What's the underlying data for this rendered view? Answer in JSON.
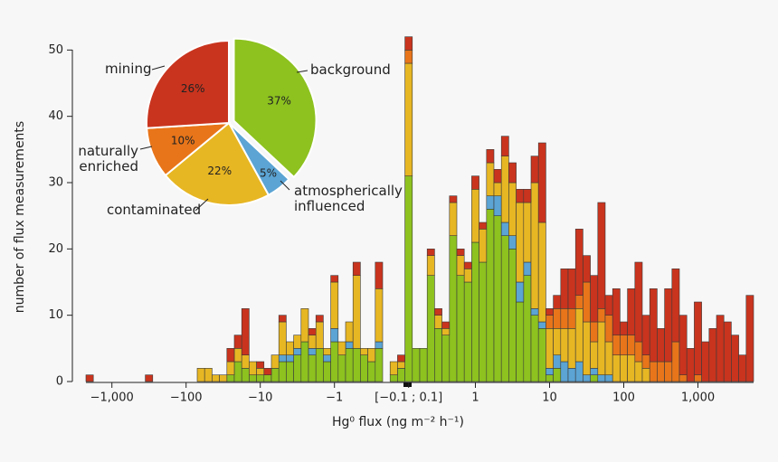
{
  "chart_data": [
    {
      "type": "bar",
      "stacked": true,
      "x_label": "Hg⁰ flux (ng m⁻² h⁻¹)",
      "y_label": "number of flux measurements",
      "categories": [
        null,
        null,
        null,
        "−1,000",
        null,
        null,
        null,
        null,
        null,
        null,
        null,
        null,
        null,
        "−100",
        null,
        null,
        null,
        null,
        null,
        null,
        null,
        null,
        null,
        "−10",
        null,
        null,
        null,
        null,
        null,
        null,
        null,
        null,
        null,
        "−1",
        null,
        null,
        null,
        null,
        null,
        null,
        null,
        null,
        null,
        "[−0.1 ; 0.1]",
        null,
        null,
        null,
        null,
        null,
        null,
        null,
        null,
        "1",
        null,
        null,
        null,
        null,
        null,
        null,
        null,
        null,
        null,
        "10",
        null,
        null,
        null,
        null,
        null,
        null,
        null,
        null,
        null,
        "100",
        null,
        null,
        null,
        null,
        null,
        null,
        null,
        null,
        null,
        "1,000",
        null,
        null,
        null,
        null,
        null,
        null,
        null
      ],
      "series": [
        {
          "name": "background",
          "color": "#8dc21f",
          "values": [
            0,
            0,
            0,
            0,
            0,
            0,
            0,
            0,
            0,
            0,
            0,
            0,
            0,
            0,
            0,
            0,
            0,
            0,
            0,
            1,
            3,
            2,
            1,
            1,
            1,
            2,
            3,
            3,
            4,
            6,
            4,
            5,
            3,
            6,
            4,
            5,
            5,
            4,
            3,
            5,
            0,
            1,
            2,
            31,
            5,
            5,
            16,
            8,
            7,
            22,
            16,
            15,
            21,
            18,
            26,
            25,
            22,
            20,
            12,
            16,
            10,
            8,
            1,
            2,
            0,
            0,
            0,
            0,
            1,
            0,
            0,
            0,
            0,
            0,
            0,
            0,
            0,
            0,
            0,
            0,
            0,
            0,
            0,
            0,
            0,
            0,
            0,
            0,
            0,
            0
          ]
        },
        {
          "name": "atmospherically influenced",
          "color": "#5ba4d4",
          "values": [
            0,
            0,
            0,
            0,
            0,
            0,
            0,
            0,
            0,
            0,
            0,
            0,
            0,
            0,
            0,
            0,
            0,
            0,
            0,
            0,
            0,
            0,
            0,
            0,
            0,
            0,
            1,
            1,
            1,
            0,
            1,
            0,
            1,
            2,
            0,
            1,
            0,
            0,
            0,
            1,
            0,
            0,
            0,
            0,
            0,
            0,
            0,
            0,
            0,
            0,
            0,
            0,
            0,
            0,
            2,
            3,
            2,
            2,
            3,
            2,
            1,
            1,
            1,
            2,
            3,
            2,
            3,
            1,
            1,
            1,
            1,
            0,
            0,
            0,
            0,
            0,
            0,
            0,
            0,
            0,
            0,
            0,
            0,
            0,
            0,
            0,
            0,
            0,
            0,
            0
          ]
        },
        {
          "name": "contaminated",
          "color": "#e7b623",
          "values": [
            0,
            0,
            0,
            0,
            0,
            0,
            0,
            0,
            0,
            0,
            0,
            0,
            0,
            0,
            0,
            2,
            2,
            1,
            1,
            2,
            2,
            2,
            2,
            1,
            0,
            2,
            5,
            2,
            2,
            5,
            2,
            4,
            1,
            7,
            2,
            3,
            11,
            1,
            2,
            8,
            0,
            2,
            1,
            17,
            0,
            0,
            3,
            2,
            1,
            5,
            3,
            2,
            8,
            5,
            5,
            2,
            10,
            8,
            12,
            9,
            19,
            15,
            6,
            4,
            5,
            6,
            8,
            8,
            4,
            8,
            5,
            4,
            4,
            4,
            3,
            2,
            0,
            0,
            0,
            0,
            0,
            0,
            0,
            0,
            0,
            0,
            0,
            0,
            0,
            0
          ]
        },
        {
          "name": "naturally enriched",
          "color": "#e8751a",
          "values": [
            0,
            0,
            0,
            0,
            0,
            0,
            0,
            0,
            0,
            0,
            0,
            0,
            0,
            0,
            0,
            0,
            0,
            0,
            0,
            0,
            0,
            0,
            0,
            0,
            0,
            0,
            0,
            0,
            0,
            0,
            0,
            0,
            0,
            0,
            0,
            0,
            0,
            0,
            0,
            0,
            0,
            0,
            0,
            2,
            0,
            0,
            0,
            0,
            0,
            0,
            0,
            0,
            0,
            0,
            0,
            0,
            0,
            0,
            0,
            0,
            0,
            0,
            2,
            3,
            3,
            3,
            2,
            6,
            3,
            2,
            4,
            3,
            3,
            3,
            3,
            2,
            3,
            3,
            3,
            6,
            1,
            0,
            1,
            0,
            0,
            0,
            0,
            0,
            0,
            0
          ]
        },
        {
          "name": "mining",
          "color": "#c9341e",
          "values": [
            1,
            0,
            0,
            0,
            0,
            0,
            0,
            0,
            1,
            0,
            0,
            0,
            0,
            0,
            0,
            0,
            0,
            0,
            0,
            2,
            2,
            7,
            0,
            1,
            1,
            0,
            1,
            0,
            0,
            0,
            1,
            1,
            0,
            1,
            0,
            0,
            2,
            0,
            0,
            4,
            0,
            0,
            1,
            2,
            0,
            0,
            1,
            1,
            1,
            1,
            1,
            1,
            2,
            1,
            2,
            2,
            3,
            3,
            2,
            2,
            4,
            12,
            1,
            2,
            6,
            6,
            10,
            4,
            7,
            16,
            3,
            7,
            2,
            7,
            12,
            6,
            11,
            5,
            11,
            11,
            9,
            5,
            11,
            6,
            8,
            10,
            9,
            7,
            4,
            13
          ]
        }
      ],
      "ylim": [
        0,
        52.5
      ],
      "yticks": [
        0,
        10,
        20,
        30,
        40,
        50
      ]
    },
    {
      "type": "pie",
      "categories": [
        "background",
        "atmospherically influenced",
        "contaminated",
        "naturally enriched",
        "mining"
      ],
      "values": [
        37,
        5,
        22,
        10,
        26
      ],
      "value_labels": [
        "37%",
        "5%",
        "22%",
        "10%",
        "26%"
      ],
      "colors": [
        "#8dc21f",
        "#5ba4d4",
        "#e7b623",
        "#e8751a",
        "#c9341e"
      ]
    }
  ]
}
